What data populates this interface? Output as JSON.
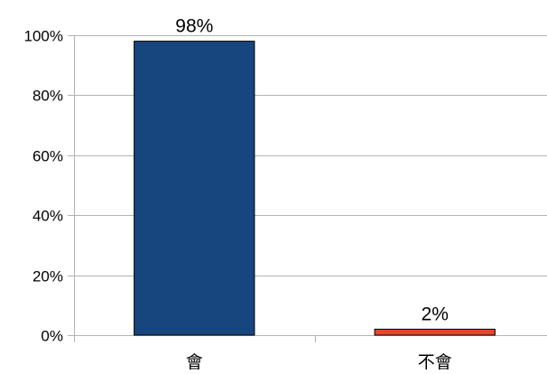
{
  "chart_data": {
    "type": "bar",
    "title": "",
    "xlabel": "",
    "ylabel": "",
    "categories": [
      "會",
      "不會"
    ],
    "values": [
      98,
      2
    ],
    "data_labels": [
      "98%",
      "2%"
    ],
    "bar_colors": [
      "#17467f",
      "#e8452a"
    ],
    "ylim": [
      0,
      100
    ],
    "yticks": [
      0,
      20,
      40,
      60,
      80,
      100
    ],
    "ytick_labels": [
      "0%",
      "20%",
      "40%",
      "60%",
      "80%",
      "100%"
    ],
    "grid": true,
    "legend": "none"
  }
}
